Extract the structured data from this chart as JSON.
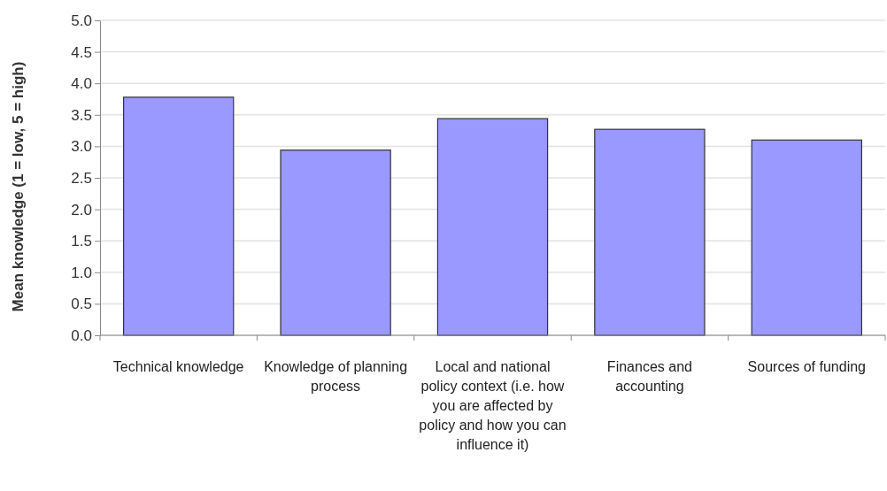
{
  "chart_data": {
    "type": "bar",
    "ylabel": "Mean knowledge (1 = low, 5 = high)",
    "categories": [
      "Technical knowledge",
      "Knowledge of planning process",
      "Local and national policy context (i.e. how you are affected by policy and how you can influence it)",
      "Finances and accounting",
      "Sources of funding"
    ],
    "values": [
      3.78,
      2.94,
      3.44,
      3.27,
      3.1
    ],
    "color": "#9999ff",
    "ylim": [
      0,
      5
    ],
    "yticks": [
      {
        "value": 0,
        "label": "0.0"
      },
      {
        "value": 0.5,
        "label": "0.5"
      },
      {
        "value": 1,
        "label": "1.0"
      },
      {
        "value": 1.5,
        "label": "1.5"
      },
      {
        "value": 2,
        "label": "2.0"
      },
      {
        "value": 2.5,
        "label": "2.5"
      },
      {
        "value": 3,
        "label": "3.0"
      },
      {
        "value": 3.5,
        "label": "3.5"
      },
      {
        "value": 4,
        "label": "4.0"
      },
      {
        "value": 4.5,
        "label": "4.5"
      },
      {
        "value": 5,
        "label": "5.0"
      }
    ],
    "grid": "y"
  }
}
